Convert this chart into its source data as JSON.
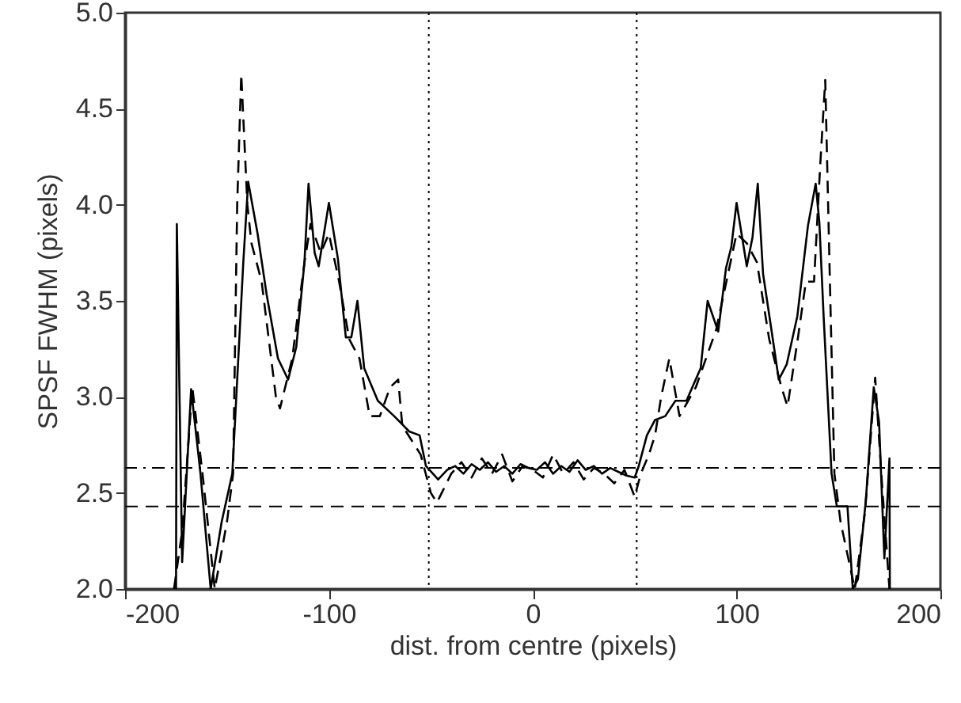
{
  "chart_data": {
    "type": "line",
    "xlabel": "dist. from centre (pixels)",
    "ylabel": "SPSF FWHM (pixels)",
    "xlim": [
      -200,
      200
    ],
    "xticks": [
      -200,
      -100,
      0,
      100,
      200
    ],
    "ylim": [
      2,
      5
    ],
    "yticks": [
      {
        "value": 2,
        "label": "2.0"
      },
      {
        "value": 2.5,
        "label": "2.5"
      },
      {
        "value": 3,
        "label": "3.0"
      },
      {
        "value": 3.5,
        "label": "3.5"
      },
      {
        "value": 4,
        "label": "4.0"
      },
      {
        "value": 4.5,
        "label": "4.5"
      },
      {
        "value": 5,
        "label": "5.0"
      }
    ],
    "grid": false,
    "marker": "none",
    "series": [
      {
        "color": "#000000",
        "line_style": "solid",
        "x": [
          -175,
          -174.6,
          -172,
          -167.6,
          -163,
          -158,
          -152.6,
          -147.4,
          -142,
          -139.6,
          -135,
          -130.5,
          -125,
          -120,
          -116,
          -112,
          -110,
          -107,
          -105,
          -100,
          -95.6,
          -91.7,
          -89,
          -86,
          -82.7,
          -76,
          -68,
          -60.6,
          -55.5,
          -52.4,
          -46.4,
          -42,
          -38,
          -34,
          -30,
          -26,
          -22,
          -18,
          -14,
          -10,
          -6,
          -2,
          2,
          6,
          10,
          14,
          18,
          22,
          26,
          30,
          34,
          38,
          42,
          46,
          50,
          52,
          56,
          60,
          65,
          70,
          75.4,
          82.4,
          85.8,
          91,
          94.8,
          97.4,
          100,
          105,
          107.8,
          110.4,
          113,
          116.8,
          120.7,
          124.6,
          129.8,
          135,
          138.8,
          140.6,
          142.7,
          146.6,
          149.2,
          154.4,
          157,
          159.5,
          163.4,
          167.3,
          169.9,
          172.5,
          175,
          175.2
        ],
        "values": [
          2.0,
          3.9,
          2.14,
          3.04,
          2.6,
          2.0,
          2.35,
          2.6,
          3.7,
          4.12,
          3.85,
          3.53,
          3.2,
          3.09,
          3.26,
          3.7,
          4.11,
          3.75,
          3.68,
          4.01,
          3.72,
          3.31,
          3.31,
          3.5,
          3.15,
          2.98,
          2.9,
          2.82,
          2.8,
          2.64,
          2.57,
          2.62,
          2.64,
          2.6,
          2.65,
          2.62,
          2.66,
          2.61,
          2.64,
          2.6,
          2.65,
          2.63,
          2.62,
          2.66,
          2.6,
          2.64,
          2.61,
          2.67,
          2.62,
          2.64,
          2.6,
          2.63,
          2.61,
          2.59,
          2.58,
          2.64,
          2.8,
          2.88,
          2.9,
          2.98,
          2.98,
          3.15,
          3.5,
          3.34,
          3.67,
          3.78,
          4.01,
          3.68,
          3.83,
          4.11,
          3.64,
          3.37,
          3.09,
          3.17,
          3.42,
          3.89,
          4.11,
          3.91,
          3.42,
          2.6,
          2.43,
          2.43,
          2.0,
          2.05,
          2.46,
          3.05,
          2.87,
          2.16,
          2.68,
          2.0
        ]
      },
      {
        "color": "#000000",
        "line_style": "dashed",
        "x": [
          -176,
          -172,
          -167,
          -162,
          -156,
          -150,
          -147,
          -145,
          -143,
          -140,
          -138,
          -133,
          -126,
          -124,
          -118,
          -112,
          -109,
          -104,
          -100,
          -95,
          -90,
          -85,
          -80,
          -75,
          -70,
          -66,
          -64,
          -55,
          -50,
          -47,
          -40,
          -35,
          -30,
          -25,
          -20,
          -15,
          -10,
          -5,
          0,
          5,
          10,
          15,
          20,
          25,
          30,
          35,
          40,
          45,
          50,
          53,
          57,
          60,
          63,
          67,
          72,
          80,
          85,
          90,
          95,
          100,
          105,
          110,
          116,
          122,
          125,
          130,
          134,
          138,
          141,
          143.5,
          146,
          148,
          151,
          156,
          158,
          163,
          168,
          171,
          175
        ],
        "values": [
          2.0,
          2.3,
          3.05,
          2.6,
          2.0,
          2.35,
          2.6,
          4.0,
          4.68,
          4.0,
          3.8,
          3.6,
          3.0,
          2.94,
          3.2,
          3.7,
          3.9,
          3.75,
          3.85,
          3.6,
          3.3,
          3.2,
          2.9,
          2.9,
          3.05,
          3.09,
          2.85,
          2.7,
          2.5,
          2.45,
          2.6,
          2.66,
          2.58,
          2.68,
          2.6,
          2.7,
          2.56,
          2.64,
          2.62,
          2.58,
          2.7,
          2.6,
          2.66,
          2.57,
          2.63,
          2.6,
          2.55,
          2.62,
          2.48,
          2.6,
          2.7,
          2.8,
          3.0,
          3.2,
          2.9,
          3.05,
          3.2,
          3.35,
          3.6,
          3.85,
          3.8,
          3.7,
          3.3,
          3.05,
          2.95,
          3.3,
          3.6,
          3.6,
          4.2,
          4.65,
          3.5,
          2.6,
          2.35,
          2.1,
          2.0,
          2.4,
          3.1,
          2.6,
          2.0
        ]
      }
    ],
    "ref_lines": [
      {
        "axis": "y",
        "value": 2.63,
        "line_style": "dashdot"
      },
      {
        "axis": "y",
        "value": 2.43,
        "line_style": "dashed"
      },
      {
        "axis": "x",
        "value": -51,
        "line_style": "dotted"
      },
      {
        "axis": "x",
        "value": 51,
        "line_style": "dotted"
      }
    ]
  }
}
